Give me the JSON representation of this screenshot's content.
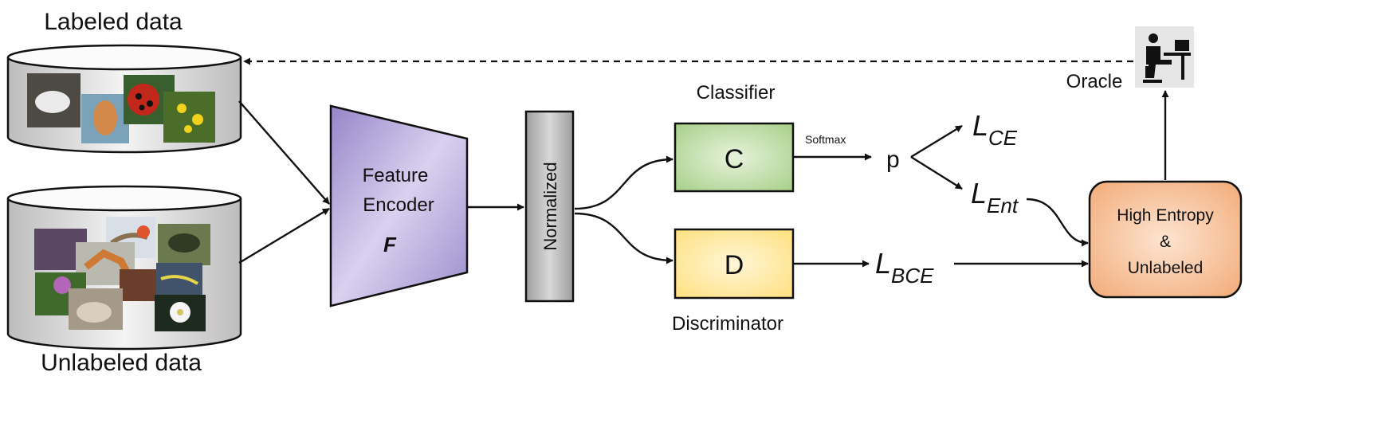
{
  "datasets": {
    "labeled": "Labeled data",
    "unlabeled": "Unlabeled data"
  },
  "encoder": {
    "line1": "Feature",
    "line2": "Encoder",
    "symbol": "F",
    "color": "#a99bd6"
  },
  "normalize": {
    "label": "Normalized",
    "color": "#a9a9a9"
  },
  "classifier": {
    "title": "Classifier",
    "letter": "C",
    "color": "#a9d18e"
  },
  "discriminator": {
    "title": "Discriminator",
    "letter": "D",
    "color": "#ffe48a"
  },
  "softmax": "Softmax",
  "prob": "p",
  "losses": {
    "ce": {
      "main": "L",
      "sub": "CE"
    },
    "ent": {
      "main": "L",
      "sub": "Ent"
    },
    "bce": {
      "main": "L",
      "sub": "BCE"
    }
  },
  "selector": {
    "line1": "High Entropy",
    "line2": "&",
    "line3": "Unlabeled",
    "color": "#f4b183"
  },
  "oracle": {
    "label": "Oracle",
    "icon": "person-at-computer-icon"
  }
}
